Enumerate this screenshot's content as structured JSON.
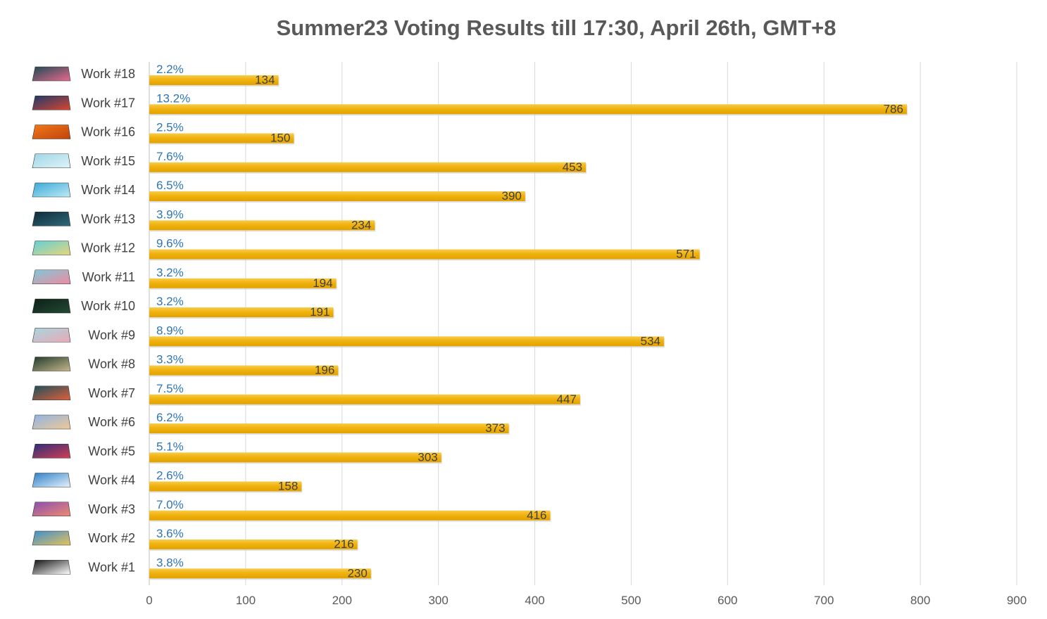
{
  "chart_data": {
    "type": "bar",
    "orientation": "horizontal",
    "title": "Summer23 Voting Results till 17:30, April 26th, GMT+8",
    "xlabel": "",
    "ylabel": "",
    "xlim": [
      0,
      900
    ],
    "x_ticks": [
      0,
      100,
      200,
      300,
      400,
      500,
      600,
      700,
      800,
      900
    ],
    "grid": "vertical",
    "legend": "none",
    "colors": {
      "bar": "#F0B20F",
      "bar_top": "#F7CC4A",
      "value_label": "#404040",
      "percent_label": "#2E75B6",
      "grid": "#D9D9D9",
      "axis_text": "#595959",
      "title": "#595959"
    },
    "categories": [
      "Work #18",
      "Work #17",
      "Work #16",
      "Work #15",
      "Work #14",
      "Work #13",
      "Work #12",
      "Work #11",
      "Work #10",
      "Work #9",
      "Work #8",
      "Work #7",
      "Work #6",
      "Work #5",
      "Work #4",
      "Work #3",
      "Work #2",
      "Work #1"
    ],
    "values": [
      134,
      786,
      150,
      453,
      390,
      234,
      571,
      194,
      191,
      534,
      196,
      447,
      373,
      303,
      158,
      416,
      216,
      230
    ],
    "percent_labels": [
      "2.2%",
      "13.2%",
      "2.5%",
      "7.6%",
      "6.5%",
      "3.9%",
      "9.6%",
      "3.2%",
      "3.2%",
      "8.9%",
      "3.3%",
      "7.5%",
      "6.2%",
      "5.1%",
      "2.6%",
      "7.0%",
      "3.6%",
      "3.8%"
    ],
    "thumbnail_icons": [
      {
        "icon": "pink-flower-mousepad-icon",
        "colors": [
          "#1f4a55",
          "#e76a8c"
        ]
      },
      {
        "icon": "red-blue-swirl-mousepad-icon",
        "colors": [
          "#1b3a6b",
          "#d9462f"
        ]
      },
      {
        "icon": "orange-lotus-mousepad-icon",
        "colors": [
          "#f07a1a",
          "#c2410c"
        ]
      },
      {
        "icon": "light-blue-texture-mousepad-icon",
        "colors": [
          "#9fd6e6",
          "#dff3f8"
        ]
      },
      {
        "icon": "aqua-glow-mousepad-icon",
        "colors": [
          "#3aa9d6",
          "#bfe9f6"
        ]
      },
      {
        "icon": "dark-mountain-mousepad-icon",
        "colors": [
          "#0f2a3a",
          "#2f6b7a"
        ]
      },
      {
        "icon": "turquoise-water-mousepad-icon",
        "colors": [
          "#5fd0d8",
          "#e8d67a"
        ]
      },
      {
        "icon": "pink-pyramid-mousepad-icon",
        "colors": [
          "#7fc8d8",
          "#f08aa0"
        ]
      },
      {
        "icon": "dark-forest-mousepad-icon",
        "colors": [
          "#0d1f17",
          "#234a34"
        ]
      },
      {
        "icon": "pastel-waves-mousepad-icon",
        "colors": [
          "#a9d6e0",
          "#e8a9b5"
        ]
      },
      {
        "icon": "dark-spiral-mousepad-icon",
        "colors": [
          "#1e3b2c",
          "#c8b68c"
        ]
      },
      {
        "icon": "red-wave-mousepad-icon",
        "colors": [
          "#1c4f5c",
          "#e0603a"
        ]
      },
      {
        "icon": "sky-gradient-mousepad-icon",
        "colors": [
          "#8fb4e6",
          "#f0c894"
        ]
      },
      {
        "icon": "dusk-gradient-mousepad-icon",
        "colors": [
          "#2b2f7a",
          "#d43d52"
        ]
      },
      {
        "icon": "blue-sky-cloud-mousepad-icon",
        "colors": [
          "#2c7fc7",
          "#e8f2fb"
        ]
      },
      {
        "icon": "purple-pink-mousepad-icon",
        "colors": [
          "#8a4fb0",
          "#f08a70"
        ]
      },
      {
        "icon": "colorful-geometric-mousepad-icon",
        "colors": [
          "#3c8fd0",
          "#e7c25a"
        ]
      },
      {
        "icon": "black-ring-mousepad-icon",
        "colors": [
          "#111111",
          "#ffffff"
        ]
      }
    ]
  }
}
